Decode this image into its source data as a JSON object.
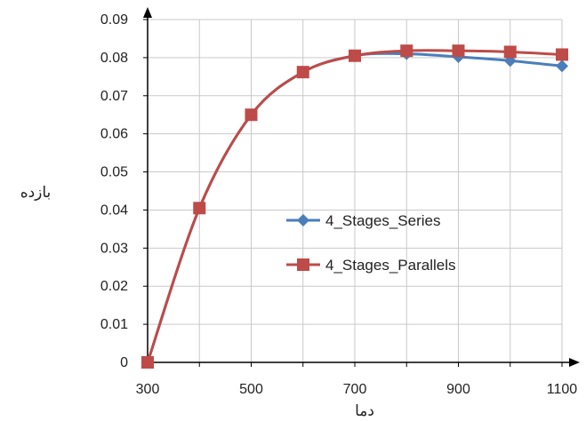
{
  "chart_data": {
    "type": "line",
    "xlabel": "دما",
    "ylabel": "بازده",
    "xlim": [
      300,
      1100
    ],
    "ylim": [
      0,
      0.09
    ],
    "x_ticks": [
      "300",
      "500",
      "700",
      "900",
      "1100"
    ],
    "y_ticks": [
      "0",
      "0.01",
      "0.02",
      "0.03",
      "0.04",
      "0.05",
      "0.06",
      "0.07",
      "0.08",
      "0.09"
    ],
    "grid": true,
    "legend_position": "center-right",
    "x": [
      300,
      400,
      500,
      600,
      700,
      800,
      900,
      1000,
      1100
    ],
    "series": [
      {
        "name": "4_Stages_Series",
        "values": [
          0,
          0.0405,
          0.065,
          0.0762,
          0.0805,
          0.081,
          0.0802,
          0.0792,
          0.0778
        ],
        "color": "#4A7EBB",
        "marker": "diamond"
      },
      {
        "name": "4_Stages_Parallels",
        "values": [
          0,
          0.0405,
          0.065,
          0.0762,
          0.0805,
          0.0818,
          0.0818,
          0.0815,
          0.0808
        ],
        "color": "#BE4B48",
        "marker": "square"
      }
    ]
  }
}
